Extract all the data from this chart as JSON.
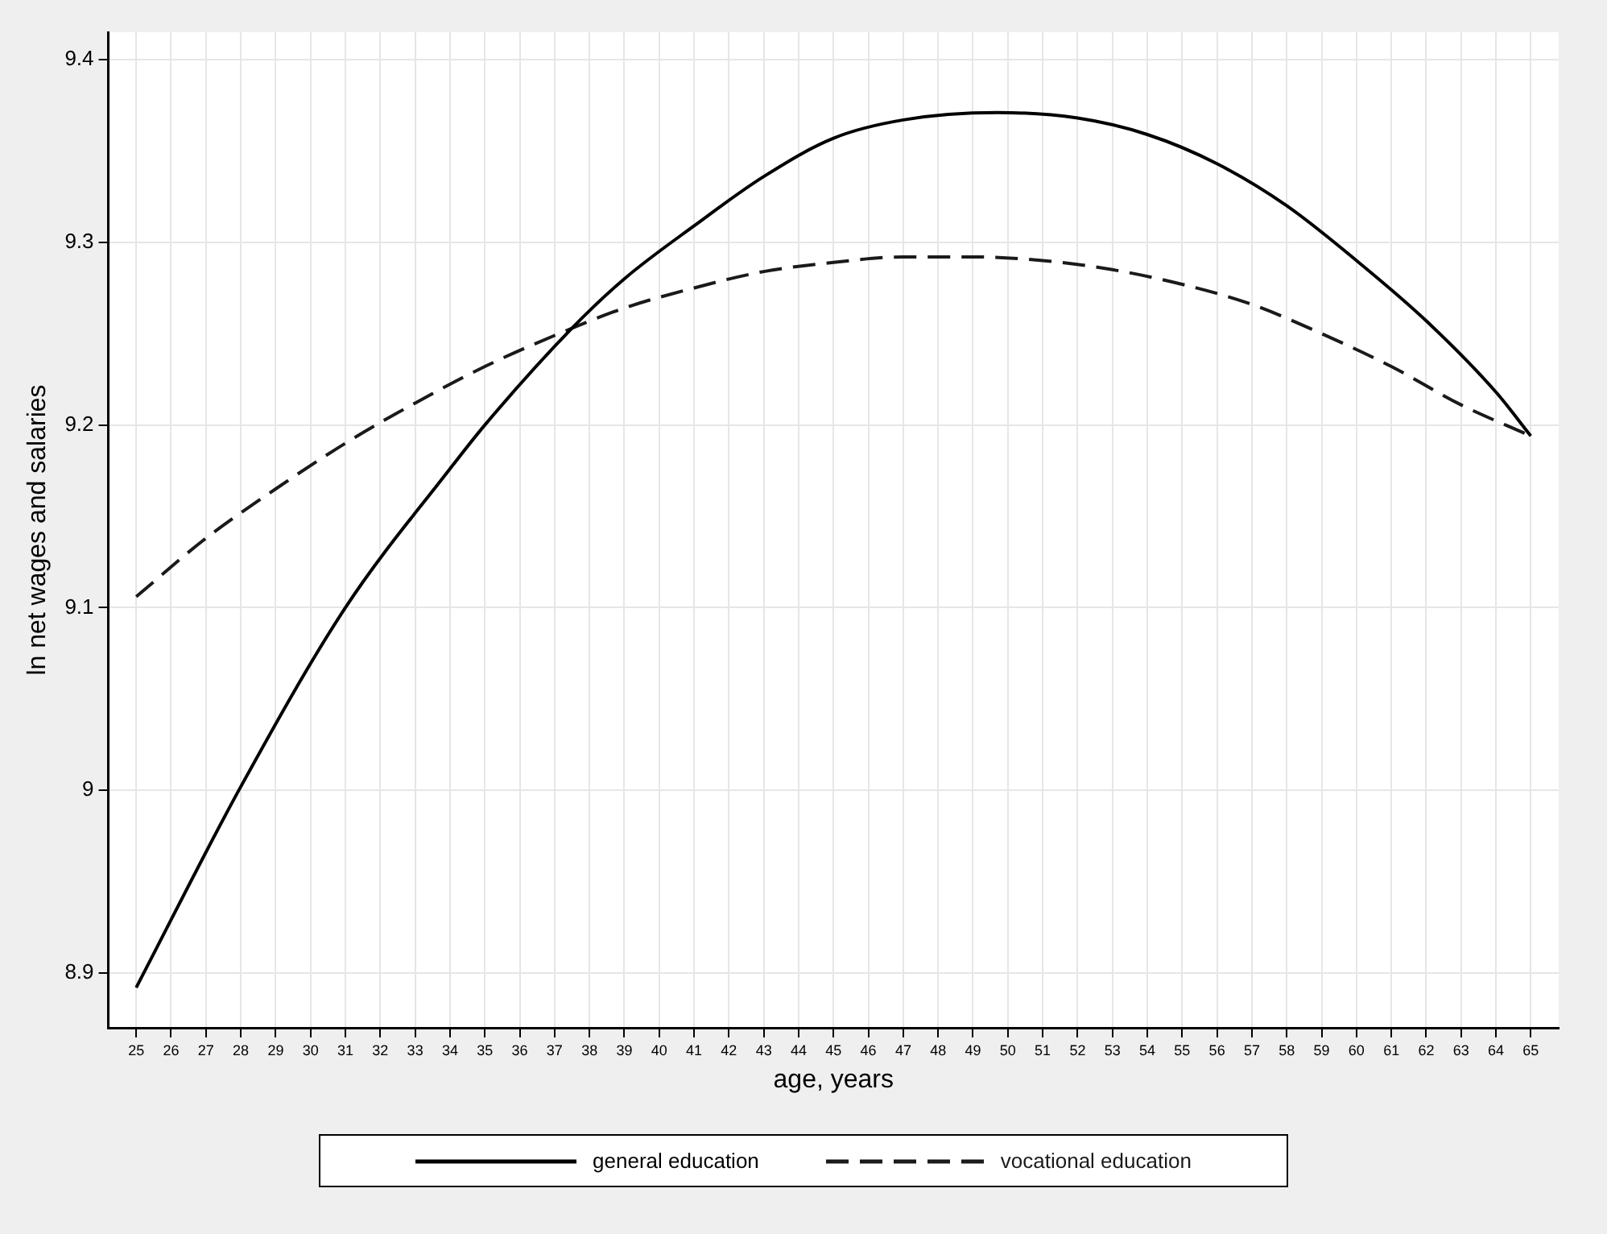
{
  "chart_data": {
    "type": "line",
    "xlabel": "age, years",
    "ylabel": "ln net wages and salaries",
    "xlim": [
      24.2,
      65.8
    ],
    "xticks": [
      25,
      26,
      27,
      28,
      29,
      30,
      31,
      32,
      33,
      34,
      35,
      36,
      37,
      38,
      39,
      40,
      41,
      42,
      43,
      44,
      45,
      46,
      47,
      48,
      49,
      50,
      51,
      52,
      53,
      54,
      55,
      56,
      57,
      58,
      59,
      60,
      61,
      62,
      63,
      64,
      65
    ],
    "ylim": [
      8.87,
      9.415
    ],
    "yticks": [
      8.9,
      9,
      9.1,
      9.2,
      9.3,
      9.4
    ],
    "grid": true,
    "legend": "bottom",
    "marker": "none",
    "series": [
      {
        "name": "general education",
        "color": "#000000",
        "line_style": "solid",
        "x": [
          25,
          28,
          31,
          34,
          35,
          37.5,
          39,
          41,
          43,
          45,
          47,
          49.7,
          52,
          54,
          56,
          58,
          60,
          62,
          64,
          65
        ],
        "values": [
          8.892,
          9.002,
          9.1,
          9.176,
          9.2,
          9.253,
          9.28,
          9.309,
          9.336,
          9.357,
          9.367,
          9.371,
          9.368,
          9.359,
          9.343,
          9.32,
          9.29,
          9.257,
          9.218,
          9.194
        ]
      },
      {
        "name": "vocational education",
        "color": "#1a1a1a",
        "line_style": "dashed",
        "x": [
          25,
          27,
          29,
          31,
          33,
          35,
          37,
          39,
          41,
          43,
          45,
          47,
          49,
          51,
          53,
          55,
          57,
          59,
          61,
          63,
          65
        ],
        "values": [
          9.106,
          9.138,
          9.165,
          9.19,
          9.212,
          9.232,
          9.249,
          9.264,
          9.275,
          9.284,
          9.289,
          9.292,
          9.292,
          9.29,
          9.285,
          9.277,
          9.266,
          9.25,
          9.232,
          9.211,
          9.194
        ]
      }
    ]
  }
}
